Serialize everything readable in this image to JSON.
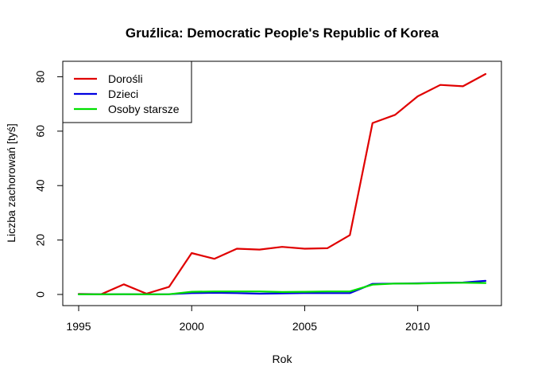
{
  "chart_data": {
    "type": "line",
    "title": "Gruźlica: Democratic People's Republic of Korea",
    "xlabel": "Rok",
    "ylabel": "Liczba zachorowań [tyś]",
    "xlim": [
      1995,
      2013
    ],
    "ylim": [
      0,
      81
    ],
    "x_ticks": [
      1995,
      2000,
      2005,
      2010
    ],
    "y_ticks": [
      0,
      20,
      40,
      60,
      80
    ],
    "grid": false,
    "legend_position": "top-left",
    "x": [
      1995,
      1996,
      1997,
      1998,
      1999,
      2000,
      2001,
      2002,
      2003,
      2004,
      2005,
      2006,
      2007,
      2008,
      2009,
      2010,
      2011,
      2012,
      2013
    ],
    "series": [
      {
        "name": "Dorośli",
        "color": "#e00000",
        "values": [
          0.2,
          0.1,
          3.7,
          0.3,
          2.8,
          15.2,
          13.1,
          16.8,
          16.5,
          17.5,
          16.8,
          17.0,
          21.8,
          63.0,
          66.0,
          72.8,
          77.0,
          76.5,
          81.0
        ]
      },
      {
        "name": "Dzieci",
        "color": "#0000e0",
        "values": [
          0.1,
          0.05,
          0.1,
          0.05,
          0.1,
          0.5,
          0.6,
          0.5,
          0.3,
          0.4,
          0.5,
          0.5,
          0.5,
          3.9,
          4.0,
          4.1,
          4.3,
          4.4,
          5.0
        ]
      },
      {
        "name": "Osoby starsze",
        "color": "#00e000",
        "values": [
          0.05,
          0.05,
          0.1,
          0.05,
          0.1,
          1.0,
          1.1,
          1.1,
          1.1,
          0.9,
          1.0,
          1.1,
          1.1,
          3.6,
          4.0,
          4.0,
          4.2,
          4.3,
          4.2
        ]
      }
    ]
  }
}
